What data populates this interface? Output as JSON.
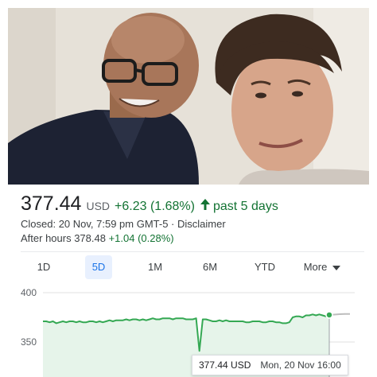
{
  "photo": {
    "description_icon": "photo-two-people"
  },
  "quote": {
    "price": "377.44",
    "currency": "USD",
    "change": "+6.23 (1.68%)",
    "direction_icon": "arrow-up-icon",
    "period": "past 5 days",
    "closed_text": "Closed: 20 Nov, 7:59 pm GMT-5 · Disclaimer",
    "after_hours_label": "After hours 378.48",
    "after_hours_change": "+1.04 (0.28%)"
  },
  "tabs": [
    {
      "label": "1D",
      "active": false
    },
    {
      "label": "5D",
      "active": true
    },
    {
      "label": "1M",
      "active": false
    },
    {
      "label": "6M",
      "active": false
    },
    {
      "label": "YTD",
      "active": false
    },
    {
      "label": "More",
      "active": false,
      "icon": "caret-down-icon"
    }
  ],
  "chart_data": {
    "type": "line",
    "y_ticks": [
      "400",
      "350"
    ],
    "ylim": [
      340,
      405
    ],
    "colors": {
      "line": "#34a853",
      "fill": "#e6f4ea",
      "after_hours": "#bdbdbd",
      "grid": "#e0e0e0"
    },
    "series": [
      {
        "values": [
          371,
          371,
          370,
          371,
          369,
          370,
          371,
          370,
          371,
          371,
          370,
          371,
          370,
          370,
          371,
          371,
          370,
          371,
          370,
          371,
          372,
          371,
          372,
          372,
          372,
          373,
          372,
          373,
          373,
          372,
          373,
          372,
          373,
          374,
          373,
          373,
          374,
          374,
          374,
          373,
          374,
          374,
          374,
          373,
          373,
          373,
          374,
          341,
          373,
          373,
          372,
          371,
          371,
          372,
          371,
          372,
          371,
          371,
          371,
          371,
          371,
          370,
          370,
          371,
          371,
          371,
          370,
          370,
          371,
          371,
          370,
          370,
          369,
          369,
          370,
          375,
          376,
          376,
          375,
          377,
          377,
          378,
          377,
          378,
          377,
          376,
          377.44
        ]
      },
      {
        "values": [
          377.44,
          377.8,
          378.2,
          378.5,
          378.48
        ]
      }
    ]
  },
  "tooltip": {
    "value": "377.44 USD",
    "time": "Mon, 20 Nov 16:00"
  }
}
